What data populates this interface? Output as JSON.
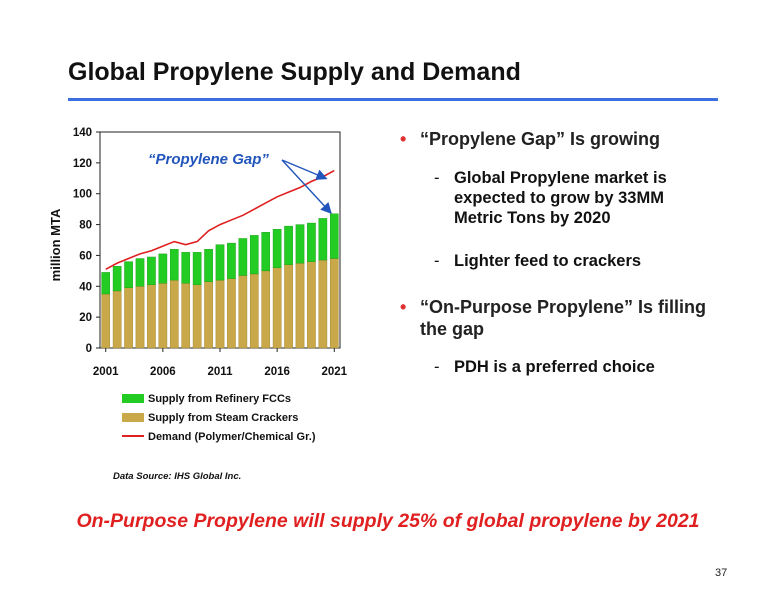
{
  "slide": {
    "title": "Global Propylene Supply and Demand",
    "data_source": "Data Source: IHS Global Inc.",
    "footer": "On-Purpose Propylene will supply 25% of global propylene by 2021",
    "page_number": "37"
  },
  "bullets": [
    {
      "text": "“Propylene Gap” Is growing",
      "subs": [
        "Global Propylene market is expected to grow by 33MM Metric Tons by 2020",
        "Lighter feed to crackers"
      ]
    },
    {
      "text": "“On-Purpose Propylene” Is filling the gap",
      "subs": [
        "PDH is a preferred choice"
      ]
    }
  ],
  "colors": {
    "title_rule": "#3b6fe0",
    "bullet_dot": "#e03030",
    "footer": "#e02020",
    "fcc_bar": "#22cc22",
    "steam_bar": "#c9a84a",
    "demand_line": "#e02020",
    "gap_annotation": "#2255bb"
  },
  "chart_data": {
    "type": "bar",
    "ylabel": "million MTA",
    "ylim": [
      0,
      140
    ],
    "yticks": [
      0,
      20,
      40,
      60,
      80,
      100,
      120,
      140
    ],
    "x": [
      2001,
      2002,
      2003,
      2004,
      2005,
      2006,
      2007,
      2008,
      2009,
      2010,
      2011,
      2012,
      2013,
      2014,
      2015,
      2016,
      2017,
      2018,
      2019,
      2020,
      2021
    ],
    "xtick_labels": [
      "2001",
      "2006",
      "2011",
      "2016",
      "2021"
    ],
    "stacked": true,
    "series": [
      {
        "name": "Supply from Steam Crackers",
        "kind": "bar",
        "values": [
          35,
          37,
          39,
          40,
          41,
          42,
          44,
          42,
          41,
          43,
          44,
          45,
          47,
          48,
          50,
          52,
          54,
          55,
          56,
          57,
          58
        ]
      },
      {
        "name": "Supply from Refinery FCCs",
        "kind": "bar",
        "values": [
          14,
          16,
          17,
          18,
          18,
          19,
          20,
          20,
          21,
          21,
          23,
          23,
          24,
          25,
          25,
          25,
          25,
          25,
          25,
          27,
          29
        ]
      },
      {
        "name": "Demand (Polymer/Chemical Gr.)",
        "kind": "line",
        "values": [
          51,
          55,
          58,
          61,
          63,
          66,
          69,
          67,
          69,
          76,
          80,
          83,
          86,
          90,
          94,
          98,
          101,
          104,
          108,
          111,
          115
        ]
      }
    ],
    "annotation": "“Propylene Gap”",
    "legend_position": "bottom"
  }
}
